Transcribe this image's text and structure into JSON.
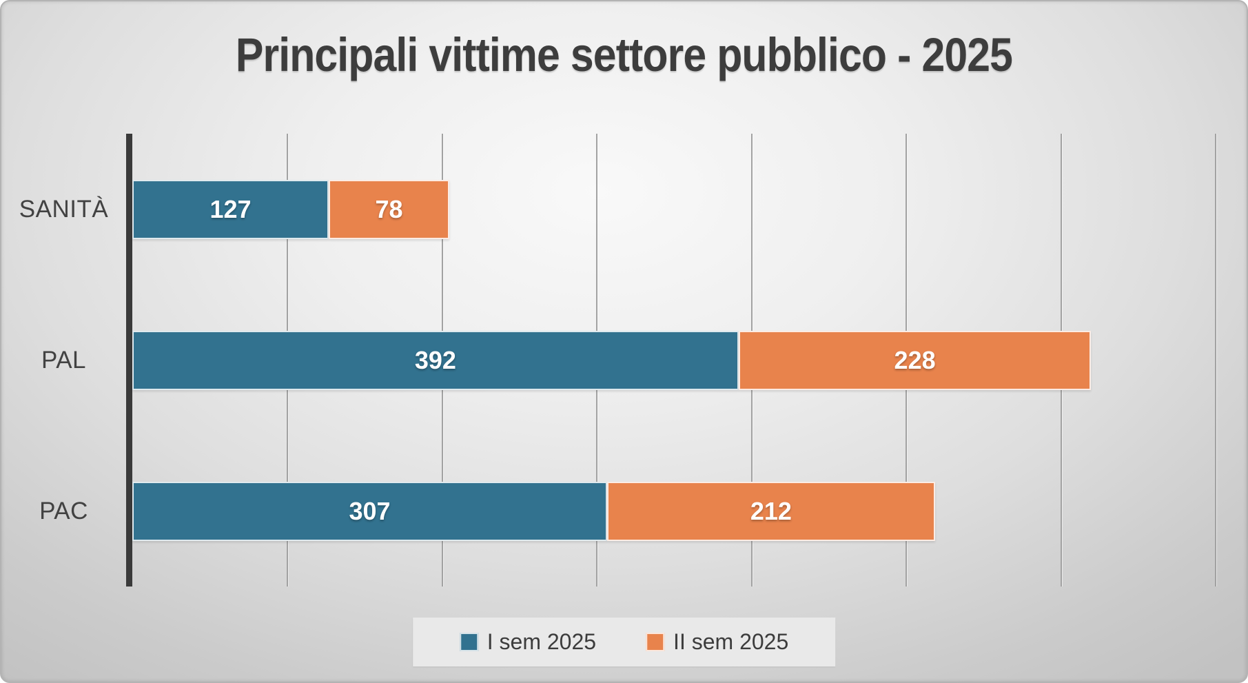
{
  "title": "Principali vittime settore pubblico - 2025",
  "colors": {
    "series1": "#32728F",
    "series2": "#E8834C",
    "axis": "#3a3a3a",
    "gridline": "#a2a2a2",
    "title_text": "#3d3d3d",
    "value_label_text": "#ffffff",
    "legend_background": "#e9e9e9"
  },
  "chart_data": {
    "type": "bar",
    "orientation": "horizontal",
    "stacked": true,
    "title": "Principali vittime settore pubblico - 2025",
    "categories": [
      "SANITÀ",
      "PAL",
      "PAC"
    ],
    "series": [
      {
        "name": "I sem 2025",
        "color": "#32728F",
        "values": [
          127,
          392,
          307
        ]
      },
      {
        "name": "II sem 2025",
        "color": "#E8834C",
        "values": [
          78,
          228,
          212
        ]
      }
    ],
    "totals": [
      205,
      620,
      519
    ],
    "xlabel": "",
    "ylabel": "",
    "xlim": [
      0,
      700
    ],
    "gridline_interval": 100,
    "grid": true,
    "tick_labels_shown": false,
    "value_labels": "inside, white, bold",
    "legend_position": "bottom-center"
  }
}
